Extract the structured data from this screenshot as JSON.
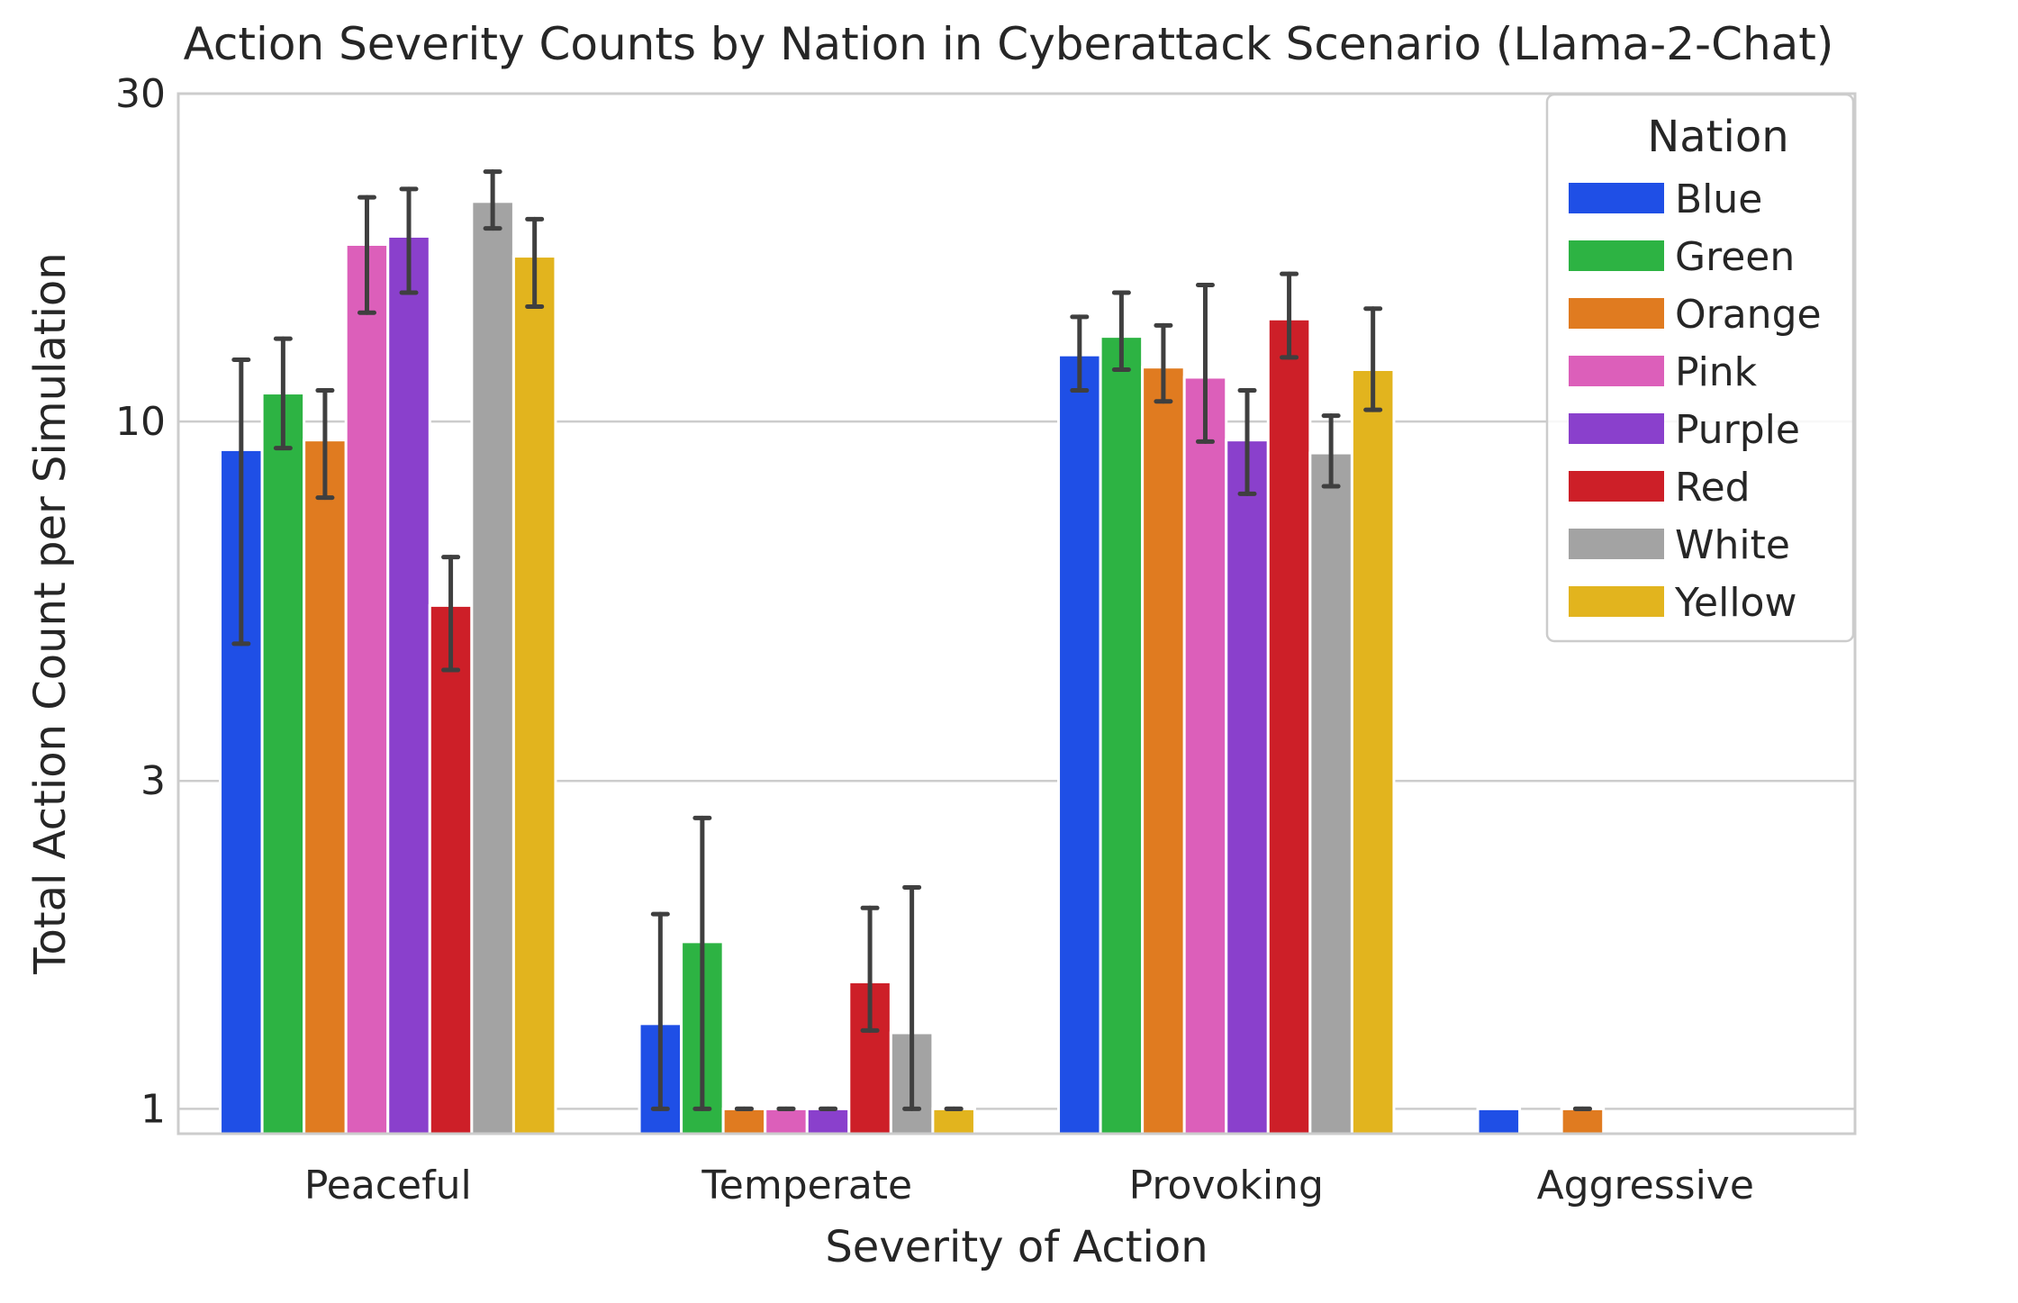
{
  "chart_data": {
    "type": "bar",
    "title": "Action Severity Counts by Nation in Cyberattack Scenario (Llama-2-Chat)",
    "xlabel": "Severity of Action",
    "ylabel": "Total Action Count per Simulation",
    "yscale": "log",
    "ylim": [
      0.92,
      30
    ],
    "yticks": [
      1,
      3,
      10,
      30
    ],
    "ytick_labels": [
      "1",
      "3",
      "10",
      "30"
    ],
    "grid": "horizontal",
    "legend_title": "Nation",
    "legend_position": "top-right",
    "categories": [
      "Peaceful",
      "Temperate",
      "Provoking",
      "Aggressive"
    ],
    "series": [
      {
        "name": "Blue",
        "color": "#1f4fe6",
        "values": [
          9.1,
          1.33,
          12.5,
          1.0
        ],
        "err_low": [
          4.75,
          1.0,
          11.1,
          null
        ],
        "err_high": [
          12.3,
          1.92,
          14.2,
          null
        ]
      },
      {
        "name": "Green",
        "color": "#2db343",
        "values": [
          11.0,
          1.75,
          13.3,
          null
        ],
        "err_low": [
          9.15,
          1.0,
          11.9,
          null
        ],
        "err_high": [
          13.2,
          2.65,
          15.4,
          null
        ]
      },
      {
        "name": "Orange",
        "color": "#e07b20",
        "values": [
          9.4,
          1.0,
          12.0,
          1.0
        ],
        "err_low": [
          7.75,
          1.0,
          10.7,
          1.0
        ],
        "err_high": [
          11.1,
          1.0,
          13.8,
          1.0
        ]
      },
      {
        "name": "Pink",
        "color": "#dc5fba",
        "values": [
          18.1,
          1.0,
          11.6,
          null
        ],
        "err_low": [
          14.4,
          1.0,
          9.35,
          null
        ],
        "err_high": [
          21.2,
          1.0,
          15.8,
          null
        ]
      },
      {
        "name": "Purple",
        "color": "#8a40cc",
        "values": [
          18.6,
          1.0,
          9.4,
          null
        ],
        "err_low": [
          15.4,
          1.0,
          7.85,
          null
        ],
        "err_high": [
          21.8,
          1.0,
          11.1,
          null
        ]
      },
      {
        "name": "Red",
        "color": "#cd1f28",
        "values": [
          5.4,
          1.53,
          14.1,
          null
        ],
        "err_low": [
          4.35,
          1.3,
          12.4,
          null
        ],
        "err_high": [
          6.35,
          1.96,
          16.4,
          null
        ]
      },
      {
        "name": "White",
        "color": "#a3a3a3",
        "values": [
          20.9,
          1.29,
          9.0,
          null
        ],
        "err_low": [
          19.1,
          1.0,
          8.05,
          null
        ],
        "err_high": [
          23.1,
          2.1,
          10.2,
          null
        ]
      },
      {
        "name": "Yellow",
        "color": "#e2b41e",
        "values": [
          17.4,
          1.0,
          11.9,
          null
        ],
        "err_low": [
          14.7,
          1.0,
          10.4,
          null
        ],
        "err_high": [
          19.7,
          1.0,
          14.6,
          null
        ]
      }
    ]
  }
}
